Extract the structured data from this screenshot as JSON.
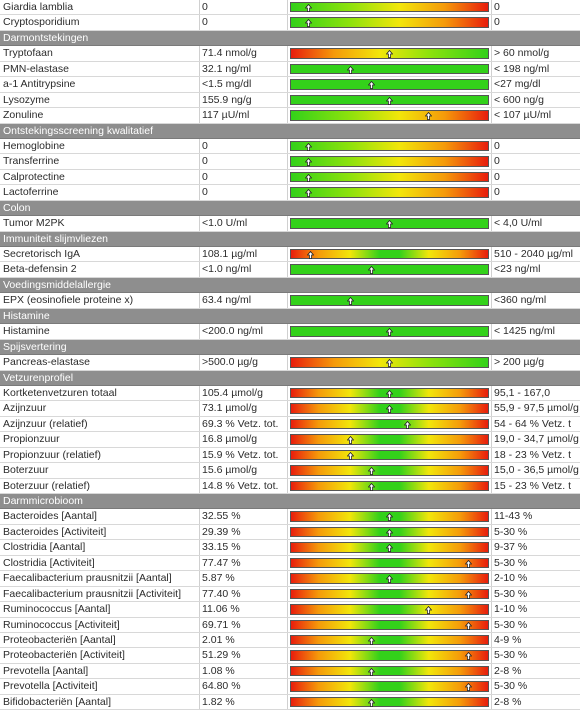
{
  "rows": [
    {
      "type": "data",
      "name": "Giardia lamblia",
      "value": "0",
      "ref": "0",
      "bar": "gyr",
      "pos": 0.09
    },
    {
      "type": "data",
      "name": "Cryptosporidium",
      "value": "0",
      "ref": "0",
      "bar": "gyr",
      "pos": 0.09
    },
    {
      "type": "section",
      "title": "Darmontstekingen"
    },
    {
      "type": "data",
      "name": "Tryptofaan",
      "value": "71.4 nmol/g",
      "ref": "> 60 nmol/g",
      "bar": "ryg",
      "pos": 0.5
    },
    {
      "type": "data",
      "name": "PMN-elastase",
      "value": "32.1 ng/ml",
      "ref": "< 198 ng/ml",
      "bar": "green",
      "pos": 0.3
    },
    {
      "type": "data",
      "name": "a-1 Antitrypsine",
      "value": "<1.5 mg/dl",
      "ref": "<27 mg/dl",
      "bar": "green",
      "pos": 0.41
    },
    {
      "type": "data",
      "name": "Lysozyme",
      "value": "155.9 ng/g",
      "ref": "< 600 ng/g",
      "bar": "green",
      "pos": 0.5
    },
    {
      "type": "data",
      "name": "Zonuline",
      "value": "117 µU/ml",
      "ref": "< 107 µU/ml",
      "bar": "gyr",
      "pos": 0.7
    },
    {
      "type": "section",
      "title": "Ontstekingsscreening kwalitatief"
    },
    {
      "type": "data",
      "name": "Hemoglobine",
      "value": "0",
      "ref": "0",
      "bar": "gyr",
      "pos": 0.09
    },
    {
      "type": "data",
      "name": "Transferrine",
      "value": "0",
      "ref": "0",
      "bar": "gyr",
      "pos": 0.09
    },
    {
      "type": "data",
      "name": "Calprotectine",
      "value": "0",
      "ref": "0",
      "bar": "gyr",
      "pos": 0.09
    },
    {
      "type": "data",
      "name": "Lactoferrine",
      "value": "0",
      "ref": "0",
      "bar": "gyr",
      "pos": 0.09
    },
    {
      "type": "section",
      "title": "Colon"
    },
    {
      "type": "data",
      "name": "Tumor M2PK",
      "value": "<1.0 U/ml",
      "ref": "< 4,0 U/ml",
      "bar": "green",
      "pos": 0.5
    },
    {
      "type": "section",
      "title": "Immuniteit slijmvliezen"
    },
    {
      "type": "data",
      "name": "Secretorisch IgA",
      "value": "108.1 µg/ml",
      "ref": "510 - 2040 µg/ml",
      "bar": "rgr",
      "pos": 0.1
    },
    {
      "type": "data",
      "name": "Beta-defensin 2",
      "value": "<1.0 ng/ml",
      "ref": "<23 ng/ml",
      "bar": "green",
      "pos": 0.41
    },
    {
      "type": "section",
      "title": "Voedingsmiddelallergie"
    },
    {
      "type": "data",
      "name": "EPX (eosinofiele proteine x)",
      "value": "63.4 ng/ml",
      "ref": "<360 ng/ml",
      "bar": "green",
      "pos": 0.3
    },
    {
      "type": "section",
      "title": "Histamine"
    },
    {
      "type": "data",
      "name": "Histamine",
      "value": "<200.0 ng/ml",
      "ref": "< 1425 ng/ml",
      "bar": "green",
      "pos": 0.5
    },
    {
      "type": "section",
      "title": "Spijsvertering"
    },
    {
      "type": "data",
      "name": "Pancreas-elastase",
      "value": ">500.0 µg/g",
      "ref": "> 200 µg/g",
      "bar": "ryg",
      "pos": 0.5
    },
    {
      "type": "section",
      "title": "Vetzurenprofiel"
    },
    {
      "type": "data",
      "name": "Kortketenvetzuren totaal",
      "value": "105.4 µmol/g",
      "ref": "95,1 - 167,0",
      "bar": "rgr",
      "pos": 0.5
    },
    {
      "type": "data",
      "name": "Azijnzuur",
      "value": "73.1 µmol/g",
      "ref": "55,9 - 97,5 µmol/g",
      "bar": "rgr",
      "pos": 0.5
    },
    {
      "type": "data",
      "name": "Azijnzuur (relatief)",
      "value": "69.3 % Vetz. tot.",
      "ref": "54 - 64 % Vetz. t",
      "bar": "rgr",
      "pos": 0.59
    },
    {
      "type": "data",
      "name": "Propionzuur",
      "value": "16.8 µmol/g",
      "ref": "19,0 - 34,7 µmol/g",
      "bar": "rgr",
      "pos": 0.3
    },
    {
      "type": "data",
      "name": "Propionzuur (relatief)",
      "value": "15.9 % Vetz. tot.",
      "ref": "18 - 23 % Vetz. t",
      "bar": "rgr",
      "pos": 0.3
    },
    {
      "type": "data",
      "name": "Boterzuur",
      "value": "15.6 µmol/g",
      "ref": "15,0 - 36,5 µmol/g",
      "bar": "rgr",
      "pos": 0.41
    },
    {
      "type": "data",
      "name": "Boterzuur (relatief)",
      "value": "14.8 % Vetz. tot.",
      "ref": "15 - 23 % Vetz. t",
      "bar": "rgr",
      "pos": 0.41
    },
    {
      "type": "section",
      "title": "Darmmicrobioom"
    },
    {
      "type": "data",
      "name": "Bacteroides [Aantal]",
      "value": "32.55 %",
      "ref": "11-43 %",
      "bar": "rgr",
      "pos": 0.5
    },
    {
      "type": "data",
      "name": "Bacteroides [Activiteit]",
      "value": "29.39 %",
      "ref": "5-30 %",
      "bar": "rgr",
      "pos": 0.5
    },
    {
      "type": "data",
      "name": "Clostridia [Aantal]",
      "value": "33.15 %",
      "ref": "9-37 %",
      "bar": "rgr",
      "pos": 0.5
    },
    {
      "type": "data",
      "name": "Clostridia [Activiteit]",
      "value": "77.47 %",
      "ref": "5-30 %",
      "bar": "rgr",
      "pos": 0.9
    },
    {
      "type": "data",
      "name": "Faecalibacterium prausnitzii [Aantal]",
      "value": "5.87 %",
      "ref": "2-10 %",
      "bar": "rgr",
      "pos": 0.5
    },
    {
      "type": "data",
      "name": "Faecalibacterium prausnitzii [Activiteit]",
      "value": "77.40 %",
      "ref": "5-30 %",
      "bar": "rgr",
      "pos": 0.9
    },
    {
      "type": "data",
      "name": "Ruminococcus [Aantal]",
      "value": "11.06 %",
      "ref": "1-10 %",
      "bar": "rgr",
      "pos": 0.7
    },
    {
      "type": "data",
      "name": "Ruminococcus [Activiteit]",
      "value": "69.71 %",
      "ref": "5-30 %",
      "bar": "rgr",
      "pos": 0.9
    },
    {
      "type": "data",
      "name": "Proteobacteriën [Aantal]",
      "value": "2.01 %",
      "ref": "4-9 %",
      "bar": "rgr",
      "pos": 0.41
    },
    {
      "type": "data",
      "name": "Proteobacteriën [Activiteit]",
      "value": "51.29 %",
      "ref": "5-30 %",
      "bar": "rgr",
      "pos": 0.9
    },
    {
      "type": "data",
      "name": "Prevotella [Aantal]",
      "value": "1.08 %",
      "ref": "2-8 %",
      "bar": "rgr",
      "pos": 0.41
    },
    {
      "type": "data",
      "name": "Prevotella [Activiteit]",
      "value": "64.80 %",
      "ref": "5-30 %",
      "bar": "rgr",
      "pos": 0.9
    },
    {
      "type": "data",
      "name": "Bifidobacteriën [Aantal]",
      "value": "1.82 %",
      "ref": "2-8 %",
      "bar": "rgr",
      "pos": 0.41
    }
  ]
}
